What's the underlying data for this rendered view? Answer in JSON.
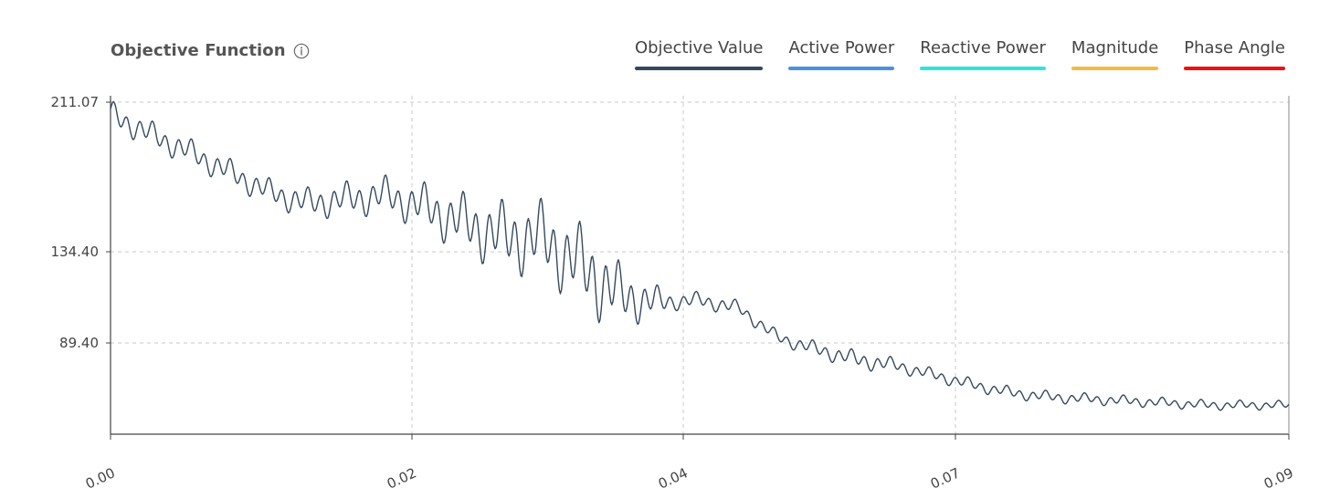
{
  "header": {
    "title": "Objective Function",
    "info_icon": "info-circle-icon"
  },
  "legend": [
    {
      "label": "Objective Value",
      "color": "#34495e"
    },
    {
      "label": "Active Power",
      "color": "#4a90e2"
    },
    {
      "label": "Reactive Power",
      "color": "#2ee6d6"
    },
    {
      "label": "Magnitude",
      "color": "#f5b942"
    },
    {
      "label": "Phase Angle",
      "color": "#ee1111"
    }
  ],
  "chart_data": {
    "type": "line",
    "title": "Objective Function",
    "xlabel": "",
    "ylabel": "",
    "x_tick_labels": [
      "0.00",
      "0.02",
      "0.04",
      "0.07",
      "0.09"
    ],
    "y_tick_labels": [
      "211.07",
      "134.40",
      "89.40"
    ],
    "ylim": [
      50,
      211.07
    ],
    "grid": true,
    "legend_placement": "top-right",
    "series": [
      {
        "name": "Objective Value",
        "color": "#34495e",
        "keypoints": [
          [
            0.0,
            205
          ],
          [
            0.003,
            195
          ],
          [
            0.006,
            186
          ],
          [
            0.009,
            176
          ],
          [
            0.012,
            166
          ],
          [
            0.015,
            160
          ],
          [
            0.018,
            162
          ],
          [
            0.021,
            164
          ],
          [
            0.024,
            158
          ],
          [
            0.027,
            150
          ],
          [
            0.03,
            143
          ],
          [
            0.033,
            142
          ],
          [
            0.036,
            128
          ],
          [
            0.039,
            113
          ],
          [
            0.042,
            110
          ],
          [
            0.045,
            111
          ],
          [
            0.048,
            107
          ],
          [
            0.051,
            92
          ],
          [
            0.054,
            86
          ],
          [
            0.057,
            81
          ],
          [
            0.06,
            78
          ],
          [
            0.063,
            73
          ],
          [
            0.066,
            68
          ],
          [
            0.069,
            64
          ],
          [
            0.072,
            62
          ],
          [
            0.075,
            61
          ],
          [
            0.078,
            60
          ],
          [
            0.081,
            59
          ],
          [
            0.084,
            58
          ],
          [
            0.087,
            58
          ],
          [
            0.09,
            58
          ]
        ],
        "noise": [
          [
            0.0,
            6
          ],
          [
            0.012,
            6
          ],
          [
            0.022,
            9
          ],
          [
            0.03,
            16
          ],
          [
            0.037,
            19
          ],
          [
            0.041,
            9
          ],
          [
            0.043,
            4
          ],
          [
            0.051,
            3
          ],
          [
            0.056,
            4
          ],
          [
            0.058,
            4
          ],
          [
            0.061,
            3
          ],
          [
            0.075,
            2.5
          ],
          [
            0.09,
            2
          ]
        ]
      }
    ]
  }
}
